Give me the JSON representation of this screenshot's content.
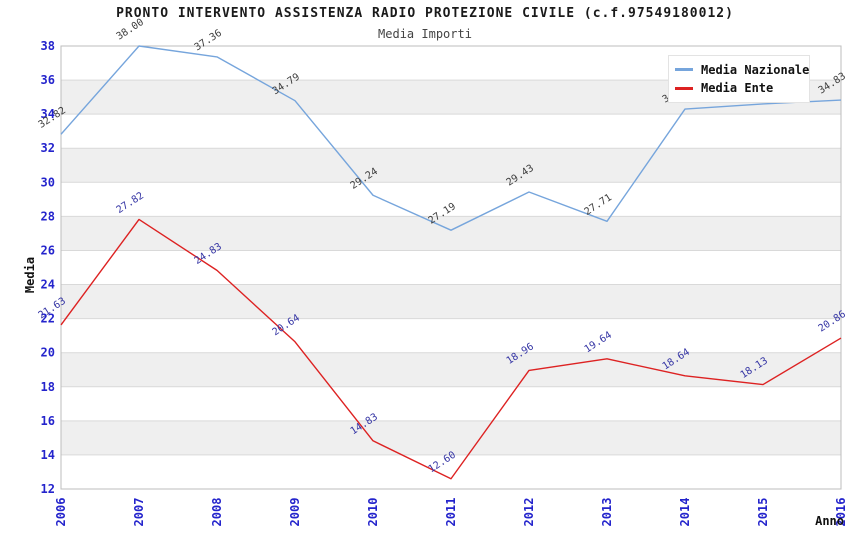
{
  "title": "PRONTO INTERVENTO ASSISTENZA RADIO PROTEZIONE CIVILE (c.f.97549180012)",
  "subtitle": "Media Importi",
  "chart_data": {
    "type": "line",
    "x_categories": [
      "2006",
      "2007",
      "2008",
      "2009",
      "2010",
      "2011",
      "2012",
      "2013",
      "2014",
      "2015",
      "2016"
    ],
    "xlabel": "Anno",
    "ylabel": "Media",
    "ylim": [
      12,
      38
    ],
    "ytick_step": 2,
    "grid": true,
    "band_fill": true,
    "legend_position": "top-right",
    "point_label_decimals": 2,
    "series": [
      {
        "name": "Media Nazionale",
        "color": "#76A5DC",
        "label_color": "#3C3C3C",
        "values": [
          32.82,
          38.0,
          37.36,
          34.79,
          29.24,
          27.19,
          29.43,
          27.71,
          34.3,
          34.6,
          34.83
        ]
      },
      {
        "name": "Media Ente",
        "color": "#DD2222",
        "label_color": "#3434A4",
        "values": [
          21.63,
          27.82,
          24.83,
          20.64,
          14.83,
          12.6,
          18.96,
          19.64,
          18.64,
          18.13,
          20.86
        ]
      }
    ]
  },
  "colors": {
    "tick_label": "#2424CC",
    "grid_line": "#D9D9D9",
    "band_gray": "#EFEFEF",
    "plot_border": "#BDBDBD"
  }
}
